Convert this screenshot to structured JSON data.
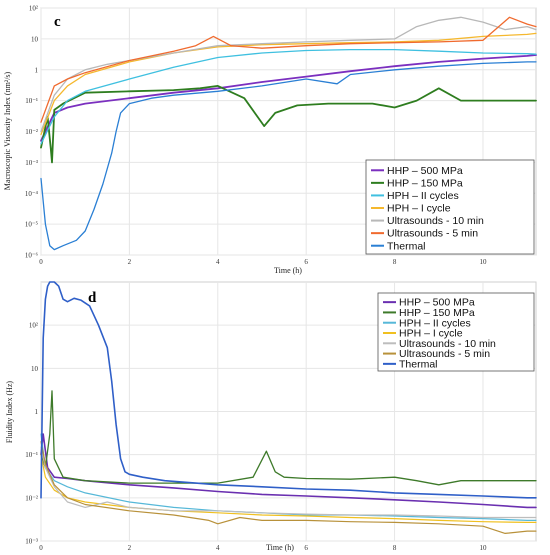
{
  "chart_data": [
    {
      "type": "line",
      "panel": "c",
      "title": "",
      "xlabel": "Time (h)",
      "ylabel": "Macroscopic Viscosity Index (nm²/s)",
      "y_scale": "log",
      "xlim": [
        0,
        11.2
      ],
      "ylim": [
        1e-06,
        100
      ],
      "x_ticks": [
        0,
        2,
        4,
        6,
        8,
        10
      ],
      "y_ticks": [
        {
          "value": 1e-06,
          "label": "10⁻⁶"
        },
        {
          "value": 1e-05,
          "label": "10⁻⁵"
        },
        {
          "value": 0.0001,
          "label": "10⁻⁴"
        },
        {
          "value": 0.001,
          "label": "10⁻³"
        },
        {
          "value": 0.01,
          "label": "10⁻²"
        },
        {
          "value": 0.1,
          "label": "10⁻¹"
        },
        {
          "value": 1,
          "label": "1"
        },
        {
          "value": 10,
          "label": "10"
        },
        {
          "value": 100,
          "label": "10²"
        }
      ],
      "grid": true,
      "legend_position": "bottom-right",
      "series": [
        {
          "name": "HHP – 500 MPa",
          "color": "#7b2fbf",
          "width": 1.8,
          "x": [
            0,
            0.1,
            0.3,
            0.6,
            1,
            2,
            3,
            4,
            5,
            6,
            7,
            8,
            9,
            10,
            11,
            11.2
          ],
          "y": [
            0.005,
            0.01,
            0.04,
            0.06,
            0.08,
            0.12,
            0.18,
            0.25,
            0.4,
            0.6,
            0.9,
            1.3,
            1.8,
            2.3,
            2.8,
            3
          ]
        },
        {
          "name": "HHP – 150 MPa",
          "color": "#2e7d1f",
          "width": 1.8,
          "x": [
            0,
            0.15,
            0.22,
            0.25,
            0.3,
            0.5,
            1,
            2,
            3,
            3.6,
            4,
            4.6,
            5.05,
            5.3,
            5.8,
            6.5,
            7.5,
            8,
            8.5,
            9,
            9.5,
            10,
            11,
            11.2
          ],
          "y": [
            0.003,
            0.03,
            0.003,
            0.001,
            0.05,
            0.08,
            0.18,
            0.2,
            0.22,
            0.25,
            0.3,
            0.12,
            0.015,
            0.04,
            0.07,
            0.08,
            0.08,
            0.06,
            0.1,
            0.25,
            0.1,
            0.1,
            0.1,
            0.1
          ]
        },
        {
          "name": "HPH – II cycles",
          "color": "#3fc0e0",
          "width": 1.3,
          "x": [
            0,
            0.3,
            0.6,
            1,
            2,
            3,
            4,
            5,
            6,
            7,
            8,
            9,
            10,
            11,
            11.2
          ],
          "y": [
            0.004,
            0.03,
            0.1,
            0.2,
            0.5,
            1.2,
            2.5,
            3.5,
            4.2,
            4.5,
            4.5,
            4,
            3.5,
            3.3,
            3.2
          ]
        },
        {
          "name": "HPH – I cycle",
          "color": "#f5b82e",
          "width": 1.3,
          "x": [
            0,
            0.3,
            0.6,
            1,
            2,
            3,
            4,
            5,
            6,
            7,
            8,
            9,
            10,
            11,
            11.2
          ],
          "y": [
            0.008,
            0.1,
            0.3,
            0.7,
            1.8,
            3.5,
            5.5,
            6.5,
            7,
            7.5,
            8,
            9,
            12,
            14,
            15
          ]
        },
        {
          "name": "Ultrasounds - 10 min",
          "color": "#b8b8b8",
          "width": 1.3,
          "x": [
            0,
            0.3,
            0.6,
            1,
            1.5,
            2,
            3,
            4,
            5,
            6,
            7,
            8,
            8.5,
            9,
            9.5,
            10,
            10.5,
            11,
            11.2
          ],
          "y": [
            0.01,
            0.15,
            0.5,
            1,
            1.5,
            2,
            3.5,
            6,
            7,
            8,
            9,
            10,
            25,
            40,
            50,
            35,
            20,
            25,
            20
          ]
        },
        {
          "name": "Ultrasounds - 5 min",
          "color": "#f06a2e",
          "width": 1.3,
          "x": [
            0,
            0.3,
            0.6,
            1,
            2,
            3,
            3.5,
            3.9,
            4.3,
            5,
            6,
            7,
            8,
            9,
            10,
            10.6,
            11,
            11.2
          ],
          "y": [
            0.02,
            0.3,
            0.5,
            0.8,
            2,
            4,
            6,
            12,
            6,
            5,
            6,
            7,
            7.5,
            8,
            9,
            50,
            30,
            25
          ]
        },
        {
          "name": "Thermal",
          "color": "#2a7fd4",
          "width": 1.3,
          "x": [
            0,
            0.1,
            0.2,
            0.3,
            0.5,
            0.8,
            1.0,
            1.2,
            1.4,
            1.6,
            1.7,
            1.8,
            2,
            2.5,
            3,
            4,
            5,
            6,
            6.7,
            7,
            8,
            9,
            10,
            11,
            11.2
          ],
          "y": [
            0.0003,
            1e-05,
            2e-06,
            1.5e-06,
            2e-06,
            3e-06,
            6e-06,
            3e-05,
            0.0002,
            0.002,
            0.01,
            0.04,
            0.08,
            0.12,
            0.15,
            0.2,
            0.3,
            0.5,
            0.35,
            0.7,
            1,
            1.3,
            1.6,
            1.8,
            1.8
          ]
        }
      ]
    },
    {
      "type": "line",
      "panel": "d",
      "title": "",
      "xlabel": "Time (h)",
      "ylabel": "Fluidity Index (Hz)",
      "y_scale": "log",
      "xlim": [
        0,
        11.2
      ],
      "ylim": [
        0.001,
        1000
      ],
      "x_ticks": [
        0,
        2,
        4,
        6,
        8,
        10
      ],
      "y_ticks": [
        {
          "value": 0.001,
          "label": "10⁻³"
        },
        {
          "value": 0.01,
          "label": "10⁻²"
        },
        {
          "value": 0.1,
          "label": "10⁻¹"
        },
        {
          "value": 1,
          "label": "1"
        },
        {
          "value": 10,
          "label": "10"
        },
        {
          "value": 100,
          "label": "10²"
        }
      ],
      "grid": true,
      "legend_position": "top-right",
      "series": [
        {
          "name": "HHP – 500 MPa",
          "color": "#6a2fb0",
          "width": 1.6,
          "x": [
            0,
            0.05,
            0.15,
            0.3,
            0.6,
            1,
            2,
            3,
            4,
            5,
            6,
            7,
            8,
            9,
            10,
            11,
            11.2
          ],
          "y": [
            0.1,
            0.3,
            0.05,
            0.03,
            0.028,
            0.025,
            0.02,
            0.017,
            0.014,
            0.012,
            0.011,
            0.01,
            0.009,
            0.008,
            0.007,
            0.006,
            0.006
          ]
        },
        {
          "name": "HHP – 150 MPa",
          "color": "#3e7a2a",
          "width": 1.3,
          "x": [
            0,
            0.1,
            0.2,
            0.25,
            0.3,
            0.5,
            1,
            2,
            3,
            4,
            4.8,
            5.1,
            5.3,
            5.5,
            6,
            7,
            8,
            8.5,
            9,
            9.5,
            10,
            11,
            11.2
          ],
          "y": [
            0.1,
            0.05,
            0.3,
            3,
            0.08,
            0.03,
            0.025,
            0.022,
            0.022,
            0.022,
            0.03,
            0.12,
            0.04,
            0.03,
            0.028,
            0.027,
            0.03,
            0.025,
            0.02,
            0.025,
            0.025,
            0.025,
            0.025
          ]
        },
        {
          "name": "HPH – II cycles",
          "color": "#56b8d8",
          "width": 1.2,
          "x": [
            0,
            0.1,
            0.3,
            0.6,
            1,
            2,
            3,
            4,
            5,
            6,
            7,
            8,
            9,
            10,
            11,
            11.2
          ],
          "y": [
            0.3,
            0.05,
            0.025,
            0.018,
            0.013,
            0.008,
            0.006,
            0.005,
            0.0045,
            0.004,
            0.004,
            0.0038,
            0.0035,
            0.0033,
            0.003,
            0.003
          ]
        },
        {
          "name": "HPH – I cycle",
          "color": "#f0c020",
          "width": 1.2,
          "x": [
            0,
            0.1,
            0.3,
            0.6,
            1,
            2,
            3,
            4,
            5,
            6,
            7,
            8,
            9,
            10,
            11,
            11.2
          ],
          "y": [
            0.1,
            0.03,
            0.015,
            0.01,
            0.008,
            0.006,
            0.005,
            0.0045,
            0.004,
            0.0038,
            0.0035,
            0.0033,
            0.003,
            0.0028,
            0.0027,
            0.0027
          ]
        },
        {
          "name": "Ultrasounds - 10 min",
          "color": "#bdbdbd",
          "width": 1.2,
          "x": [
            0,
            0.1,
            0.3,
            0.6,
            1,
            1.5,
            2,
            3,
            4,
            5,
            6,
            7,
            8,
            9,
            10,
            11,
            11.2
          ],
          "y": [
            0.15,
            0.05,
            0.018,
            0.008,
            0.006,
            0.008,
            0.006,
            0.005,
            0.005,
            0.0045,
            0.0042,
            0.004,
            0.004,
            0.0038,
            0.0035,
            0.0035,
            0.0035
          ]
        },
        {
          "name": "Ultrasounds - 5 min",
          "color": "#b8913a",
          "width": 1.2,
          "x": [
            0,
            0.1,
            0.3,
            0.6,
            1,
            2,
            3,
            3.8,
            4,
            4.5,
            5,
            6,
            7,
            8,
            9,
            10,
            10.5,
            11,
            11.2
          ],
          "y": [
            0.2,
            0.06,
            0.02,
            0.01,
            0.007,
            0.005,
            0.004,
            0.003,
            0.0025,
            0.0035,
            0.003,
            0.003,
            0.0028,
            0.0027,
            0.0025,
            0.0022,
            0.0015,
            0.0017,
            0.0017
          ]
        },
        {
          "name": "Thermal",
          "color": "#2f5fc8",
          "width": 1.6,
          "x": [
            0,
            0.05,
            0.1,
            0.15,
            0.2,
            0.3,
            0.4,
            0.5,
            0.6,
            0.75,
            0.9,
            1.1,
            1.3,
            1.5,
            1.6,
            1.7,
            1.8,
            1.9,
            2,
            2.3,
            2.8,
            3.5,
            4,
            5,
            6,
            7,
            8,
            9,
            10,
            11,
            11.2
          ],
          "y": [
            0.01,
            50,
            400,
            800,
            1000,
            1000,
            800,
            400,
            350,
            420,
            380,
            280,
            100,
            30,
            5,
            0.5,
            0.08,
            0.04,
            0.035,
            0.03,
            0.025,
            0.022,
            0.02,
            0.018,
            0.016,
            0.015,
            0.013,
            0.012,
            0.011,
            0.01,
            0.01
          ]
        }
      ]
    }
  ]
}
